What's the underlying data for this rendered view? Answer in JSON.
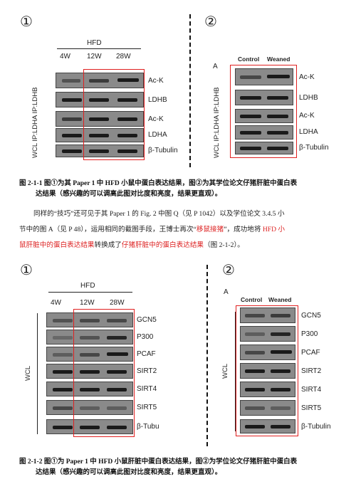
{
  "panel1": {
    "num_left": "①",
    "num_right": "②",
    "left": {
      "group": "HFD",
      "lanes": [
        "4W",
        "12W",
        "28W"
      ],
      "side_label": "WCL IP:LDHA IP:LDHB",
      "rows": [
        "Ac-K",
        "LDHB",
        "Ac-K",
        "LDHA",
        "β-Tubulin"
      ]
    },
    "right": {
      "corner": "A",
      "lanes": [
        "Control",
        "Weaned"
      ],
      "side_label": "WCL IP:LDHA IP:LDHB",
      "rows": [
        "Ac-K",
        "LDHB",
        "Ac-K",
        "LDHA",
        "β-Tubulin"
      ]
    }
  },
  "caption1": {
    "line1": "图 2-1-1  图①为其 Paper 1 中 HFD 小鼠中蛋白表达结果，图②为其学位论文仔猪肝脏中蛋白表",
    "line2": "达结果（感兴趣的可以调高此图对比度和亮度，结果更直观）。"
  },
  "paragraph": {
    "l1": "同样的“技巧”还可见于其 Paper 1 的 Fig. 2 中图 Q（见 P 1042）以及学位论文 3.4.5 小",
    "l2a": "节中的图 A（见 P 48），运用相同的截图手段，王博士再次“",
    "l2b": "移鼠接猪",
    "l2c": "”，成功地将 ",
    "l2d": "HFD 小",
    "l3a": "鼠肝脏中的蛋白表达结果",
    "l3b": "转换成了",
    "l3c": "仔猪肝脏中的蛋白表达结果",
    "l3d": "（图 2-1-2）。"
  },
  "panel2": {
    "num_left": "①",
    "num_right": "②",
    "left": {
      "group": "HFD",
      "lanes": [
        "4W",
        "12W",
        "28W"
      ],
      "side_label": "WCL",
      "rows": [
        "GCN5",
        "P300",
        "PCAF",
        "SIRT2",
        "SIRT4",
        "SIRT5",
        "β-Tubu"
      ]
    },
    "right": {
      "corner": "A",
      "lanes": [
        "Control",
        "Weaned"
      ],
      "side_label": "WCL",
      "rows": [
        "GCN5",
        "P300",
        "PCAF",
        "SIRT2",
        "SIRT4",
        "SIRT5",
        "β-Tubulin"
      ]
    }
  },
  "caption2": {
    "line1": "图 2-1-2  图①为 Paper 1 中 HFD 小鼠肝脏中蛋白表达结果，图②为学位论文仔猪肝脏中蛋白表",
    "line2": "达结果（感兴趣的可以调高此图对比度和亮度，结果更直观）。"
  },
  "colors": {
    "highlight": "#e02020",
    "text_red": "#d22222"
  }
}
